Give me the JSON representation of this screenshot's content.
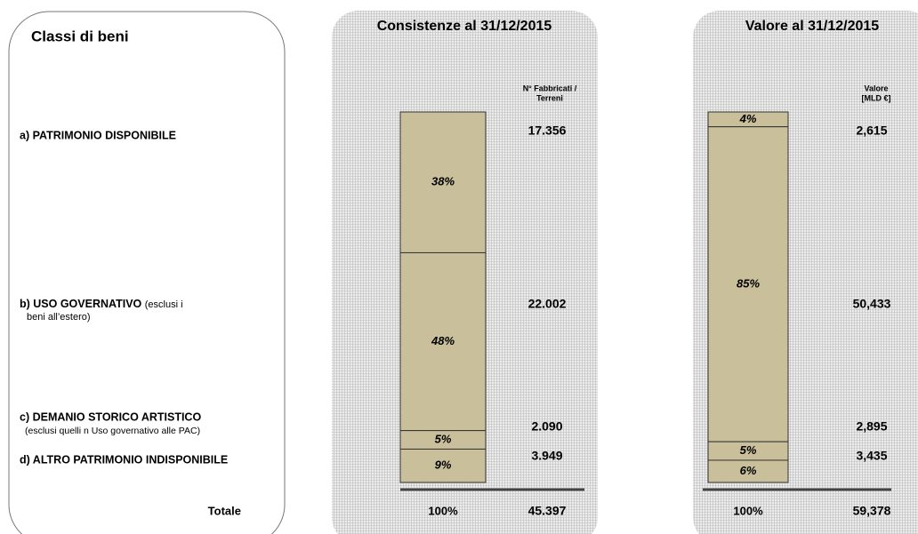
{
  "header": {
    "title": "Classi di beni"
  },
  "classes": [
    {
      "label": "a) PATRIMONIO DISPONIBILE"
    },
    {
      "label": "b) USO GOVERNATIVO",
      "note_lines": [
        "(esclusi i",
        "beni all’estero)"
      ]
    },
    {
      "label": "c) DEMANIO STORICO ARTISTICO",
      "note_lines": [
        "(esclusi quelli n Uso governativo alle PAC)"
      ]
    },
    {
      "label": "d) ALTRO PATRIMONIO INDISPONIBILE"
    }
  ],
  "total_label": "Totale",
  "chart_data": [
    {
      "type": "stacked-bar",
      "title": "Consistenze al 31/12/2015",
      "column_label": [
        "N° Fabbricati /",
        "Terreni"
      ],
      "values": [
        38,
        48,
        5,
        9
      ],
      "value_labels": [
        "38%",
        "48%",
        "5%",
        "9%"
      ],
      "amounts": [
        17356,
        22002,
        2090,
        3949
      ],
      "amount_labels": [
        "17.356",
        "22.002",
        "2.090",
        "3.949"
      ],
      "total": 100,
      "total_label": "100%",
      "amount_total": 45397,
      "amount_total_label": "45.397",
      "color": "#c9bf9b"
    },
    {
      "type": "stacked-bar",
      "title": "Valore al 31/12/2015",
      "column_label": [
        "Valore",
        "[MLD €]"
      ],
      "values": [
        4,
        85,
        5,
        6
      ],
      "value_labels": [
        "4%",
        "85%",
        "5%",
        "6%"
      ],
      "amounts": [
        2.615,
        50.433,
        2.895,
        3.435
      ],
      "amount_labels": [
        "2,615",
        "50,433",
        "2,895",
        "3,435"
      ],
      "total": 100,
      "total_label": "100%",
      "amount_total": 59.378,
      "amount_total_label": "59,378",
      "color": "#c9bf9b"
    }
  ]
}
